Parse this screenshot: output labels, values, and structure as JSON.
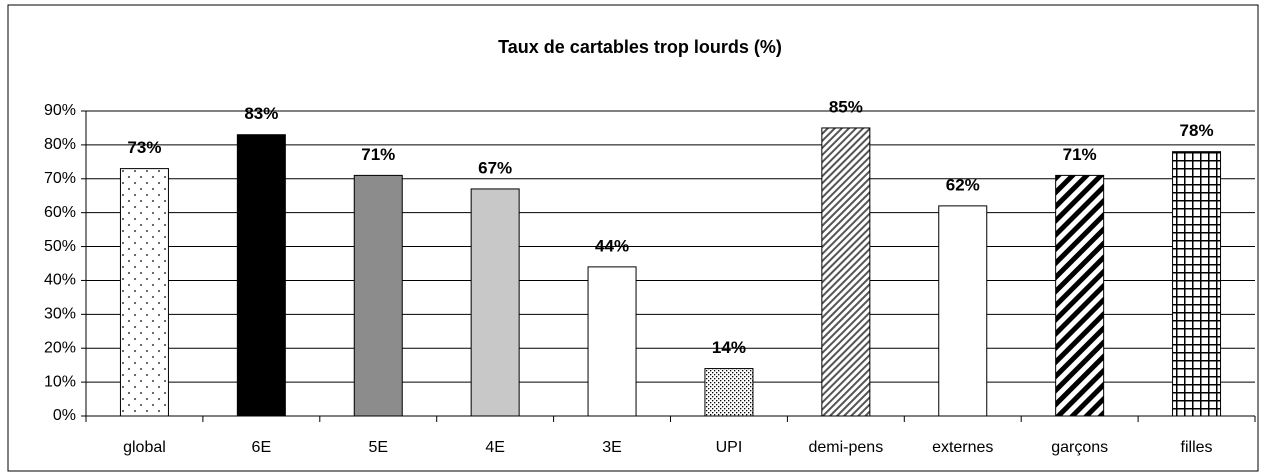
{
  "chart_data": {
    "type": "bar",
    "title": "Taux de cartables trop lourds (%)",
    "categories": [
      "global",
      "6E",
      "5E",
      "4E",
      "3E",
      "UPI",
      "demi-pens",
      "externes",
      "garçons",
      "filles"
    ],
    "values": [
      73,
      83,
      71,
      67,
      44,
      14,
      85,
      62,
      71,
      78
    ],
    "value_labels": [
      "73%",
      "83%",
      "71%",
      "67%",
      "44%",
      "14%",
      "85%",
      "62%",
      "71%",
      "78%"
    ],
    "colors": [
      "#ffffff",
      "#000000",
      "#8c8c8c",
      "#c8c8c8",
      "#ffffff",
      "#ffffff",
      "#ffffff",
      "#ffffff",
      "#ffffff",
      "#ffffff"
    ],
    "patterns": [
      "dots",
      "solid",
      "solid",
      "solid",
      "solid",
      "dense-dots",
      "hatch",
      "solid",
      "thick-hatch",
      "grid"
    ],
    "ylim": [
      0,
      90
    ],
    "yticks": [
      {
        "value": 0,
        "label": "0%"
      },
      {
        "value": 10,
        "label": "10%"
      },
      {
        "value": 20,
        "label": "20%"
      },
      {
        "value": 30,
        "label": "30%"
      },
      {
        "value": 40,
        "label": "40%"
      },
      {
        "value": 50,
        "label": "50%"
      },
      {
        "value": 60,
        "label": "60%"
      },
      {
        "value": 70,
        "label": "70%"
      },
      {
        "value": 80,
        "label": "80%"
      },
      {
        "value": 90,
        "label": "90%"
      }
    ],
    "grid": true
  }
}
